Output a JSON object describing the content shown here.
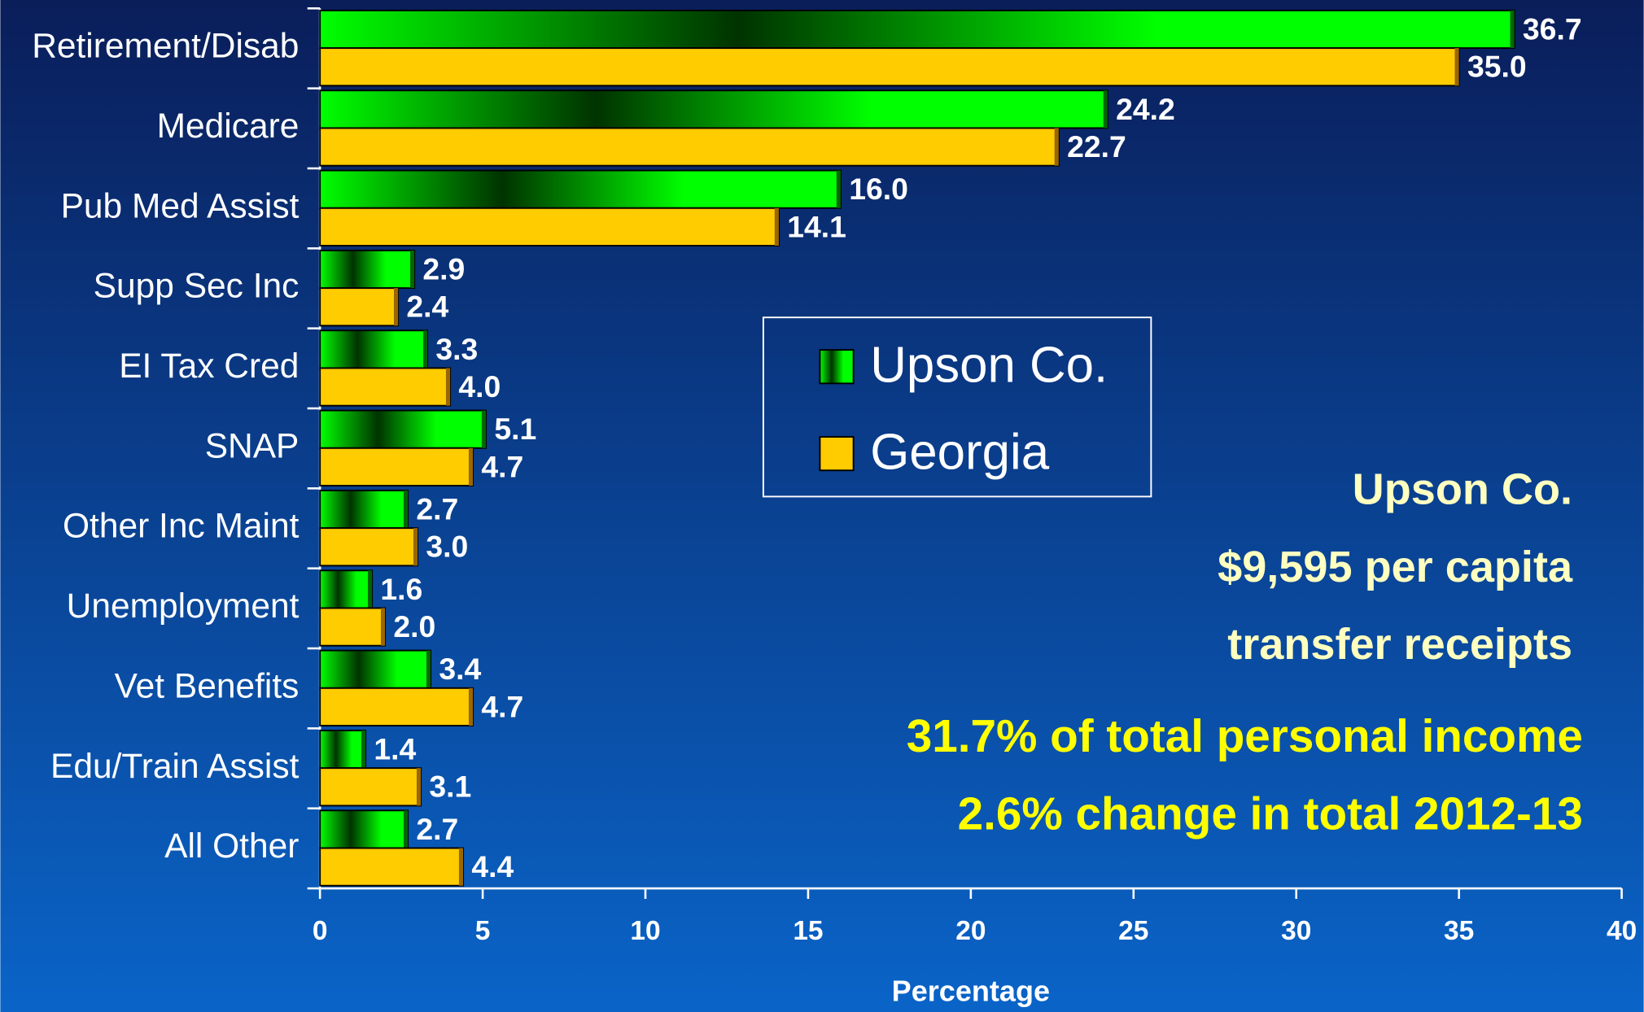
{
  "chart_data": {
    "type": "hbar",
    "categories": [
      "Retirement/Disab",
      "Medicare",
      "Pub Med Assist",
      "Supp Sec Inc",
      "EI Tax Cred",
      "SNAP",
      "Other Inc Maint",
      "Unemployment",
      "Vet Benefits",
      "Edu/Train Assist",
      "All Other"
    ],
    "series": [
      {
        "name": "Upson Co.",
        "color": "#00ff00",
        "values": [
          36.7,
          24.2,
          16.0,
          2.9,
          3.3,
          5.1,
          2.7,
          1.6,
          3.4,
          1.4,
          2.7
        ],
        "value_labels": [
          "36.7",
          "24.2",
          "16.0",
          "2.9",
          "3.3",
          "5.1",
          "2.7",
          "1.6",
          "3.4",
          "1.4",
          "2.7"
        ]
      },
      {
        "name": "Georgia",
        "color": "#ffcc00",
        "values": [
          35.0,
          22.7,
          14.1,
          2.4,
          4.0,
          4.7,
          3.0,
          2.0,
          4.7,
          3.1,
          4.4
        ],
        "value_labels": [
          "35.0",
          "22.7",
          "14.1",
          "2.4",
          "4.0",
          "4.7",
          "3.0",
          "2.0",
          "4.7",
          "3.1",
          "4.4"
        ]
      }
    ],
    "xlabel": "Percentage",
    "xlim": [
      0,
      40
    ],
    "xticks": [
      0,
      5,
      10,
      15,
      20,
      25,
      30,
      35,
      40
    ],
    "legend": "center",
    "annotations": [
      {
        "text": "Upson Co.",
        "color": "#ffffc0"
      },
      {
        "text": "$9,595 per capita",
        "color": "#ffffc0"
      },
      {
        "text": "transfer receipts",
        "color": "#ffffc0"
      },
      {
        "text": "31.7% of total personal income",
        "color": "#ffff00"
      },
      {
        "text": "2.6% change in total 2012-13",
        "color": "#ffff00"
      }
    ]
  }
}
